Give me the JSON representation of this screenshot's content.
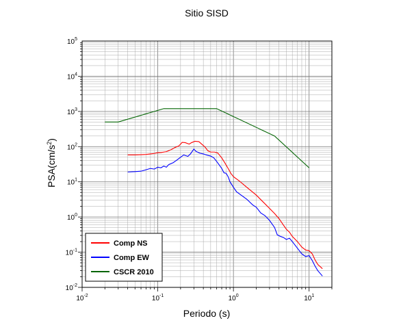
{
  "chart_data": {
    "type": "line",
    "title": "Sitio SISD",
    "xlabel": "Periodo (s)",
    "ylabel": "PSA(cm/s²)",
    "x_scale": "log",
    "y_scale": "log",
    "xlim": [
      0.01,
      20
    ],
    "ylim": [
      0.01,
      100000
    ],
    "grid": true,
    "legend_position": "bottom-left",
    "x_ticks": [
      {
        "base": "10",
        "exp": "-2",
        "value": 0.01
      },
      {
        "base": "10",
        "exp": "-1",
        "value": 0.1
      },
      {
        "base": "10",
        "exp": "0",
        "value": 1
      },
      {
        "base": "10",
        "exp": "1",
        "value": 10
      }
    ],
    "y_ticks": [
      {
        "base": "10",
        "exp": "-2",
        "value": 0.01
      },
      {
        "base": "10",
        "exp": "-1",
        "value": 0.1
      },
      {
        "base": "10",
        "exp": "0",
        "value": 1
      },
      {
        "base": "10",
        "exp": "1",
        "value": 10
      },
      {
        "base": "10",
        "exp": "2",
        "value": 100
      },
      {
        "base": "10",
        "exp": "3",
        "value": 1000
      },
      {
        "base": "10",
        "exp": "4",
        "value": 10000
      },
      {
        "base": "10",
        "exp": "5",
        "value": 100000
      }
    ],
    "series": [
      {
        "name": "Comp NS",
        "color": "#ff0000",
        "points": [
          [
            0.04,
            58
          ],
          [
            0.05,
            58
          ],
          [
            0.06,
            59
          ],
          [
            0.07,
            60
          ],
          [
            0.08,
            62
          ],
          [
            0.09,
            64
          ],
          [
            0.1,
            67
          ],
          [
            0.11,
            68
          ],
          [
            0.13,
            72
          ],
          [
            0.15,
            82
          ],
          [
            0.17,
            95
          ],
          [
            0.19,
            105
          ],
          [
            0.21,
            132
          ],
          [
            0.23,
            130
          ],
          [
            0.26,
            118
          ],
          [
            0.28,
            130
          ],
          [
            0.31,
            142
          ],
          [
            0.35,
            138
          ],
          [
            0.38,
            118
          ],
          [
            0.42,
            98
          ],
          [
            0.46,
            76
          ],
          [
            0.5,
            70
          ],
          [
            0.56,
            70
          ],
          [
            0.62,
            66
          ],
          [
            0.7,
            48
          ],
          [
            0.78,
            33
          ],
          [
            0.85,
            24
          ],
          [
            0.93,
            17
          ],
          [
            1.0,
            14
          ],
          [
            1.2,
            10.5
          ],
          [
            1.5,
            7
          ],
          [
            2.0,
            4.2
          ],
          [
            2.5,
            2.6
          ],
          [
            3.0,
            1.75
          ],
          [
            3.5,
            1.25
          ],
          [
            4.0,
            0.9
          ],
          [
            4.5,
            0.62
          ],
          [
            5.0,
            0.45
          ],
          [
            5.5,
            0.37
          ],
          [
            6.0,
            0.28
          ],
          [
            7.0,
            0.2
          ],
          [
            8.0,
            0.14
          ],
          [
            9.0,
            0.115
          ],
          [
            10.0,
            0.11
          ],
          [
            11.0,
            0.09
          ],
          [
            12.0,
            0.06
          ],
          [
            13.0,
            0.045
          ],
          [
            15.0,
            0.034
          ]
        ]
      },
      {
        "name": "Comp EW",
        "color": "#0000ff",
        "points": [
          [
            0.04,
            19
          ],
          [
            0.05,
            19.5
          ],
          [
            0.06,
            20
          ],
          [
            0.07,
            22
          ],
          [
            0.08,
            24
          ],
          [
            0.09,
            23
          ],
          [
            0.1,
            26
          ],
          [
            0.11,
            25
          ],
          [
            0.12,
            28
          ],
          [
            0.13,
            26
          ],
          [
            0.14,
            31
          ],
          [
            0.16,
            35
          ],
          [
            0.18,
            42
          ],
          [
            0.2,
            50
          ],
          [
            0.22,
            58
          ],
          [
            0.25,
            53
          ],
          [
            0.27,
            62
          ],
          [
            0.3,
            85
          ],
          [
            0.32,
            73
          ],
          [
            0.36,
            65
          ],
          [
            0.4,
            62
          ],
          [
            0.45,
            57
          ],
          [
            0.5,
            54
          ],
          [
            0.55,
            48
          ],
          [
            0.6,
            38
          ],
          [
            0.65,
            30
          ],
          [
            0.7,
            24
          ],
          [
            0.75,
            18
          ],
          [
            0.8,
            17.5
          ],
          [
            0.85,
            14
          ],
          [
            0.9,
            10
          ],
          [
            1.0,
            7
          ],
          [
            1.1,
            5.2
          ],
          [
            1.3,
            4.0
          ],
          [
            1.5,
            3.2
          ],
          [
            1.8,
            2.2
          ],
          [
            2.0,
            1.9
          ],
          [
            2.3,
            1.3
          ],
          [
            2.6,
            1.1
          ],
          [
            3.0,
            0.8
          ],
          [
            3.5,
            0.5
          ],
          [
            3.8,
            0.31
          ],
          [
            4.2,
            0.28
          ],
          [
            4.6,
            0.26
          ],
          [
            5.0,
            0.23
          ],
          [
            5.5,
            0.25
          ],
          [
            6.0,
            0.2
          ],
          [
            7.0,
            0.13
          ],
          [
            8.0,
            0.09
          ],
          [
            9.0,
            0.075
          ],
          [
            10.0,
            0.08
          ],
          [
            11.0,
            0.058
          ],
          [
            12.0,
            0.04
          ],
          [
            13.0,
            0.03
          ],
          [
            15.0,
            0.021
          ]
        ]
      },
      {
        "name": "CSCR 2010",
        "color": "#006400",
        "points": [
          [
            0.02,
            500
          ],
          [
            0.03,
            500
          ],
          [
            0.12,
            1200
          ],
          [
            0.6,
            1200
          ],
          [
            3.5,
            200
          ],
          [
            10.0,
            25
          ]
        ]
      }
    ]
  }
}
